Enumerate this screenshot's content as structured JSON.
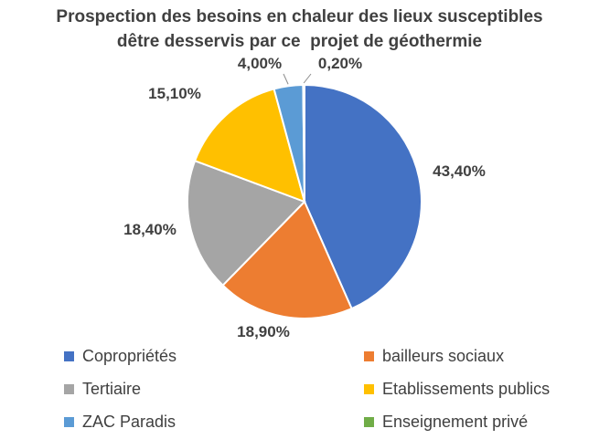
{
  "chart_data": {
    "type": "pie",
    "title_lines": [
      "Prospection des besoins en chaleur des lieux susceptibles",
      "dêtre desservis par ce  projet de géothermie"
    ],
    "slices": [
      {
        "name": "Copropriétés",
        "value": 43.4,
        "label": "43,40%",
        "color": "#4472C4"
      },
      {
        "name": "bailleurs sociaux",
        "value": 18.9,
        "label": "18,90%",
        "color": "#ED7D31"
      },
      {
        "name": "Tertiaire",
        "value": 18.4,
        "label": "18,40%",
        "color": "#A5A5A5"
      },
      {
        "name": "Etablissements publics",
        "value": 15.1,
        "label": "15,10%",
        "color": "#FFC000"
      },
      {
        "name": "ZAC Paradis",
        "value": 4.0,
        "label": "4,00%",
        "color": "#5B9BD5"
      },
      {
        "name": "Enseignement privé",
        "value": 0.2,
        "label": "0,20%",
        "color": "#70AD47"
      }
    ],
    "legend_position": "bottom"
  }
}
